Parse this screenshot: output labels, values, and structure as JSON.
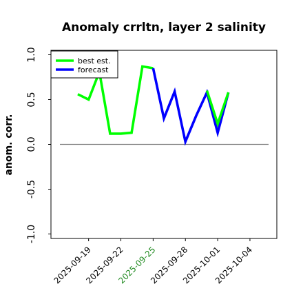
{
  "chart_data": {
    "type": "line",
    "title": "Anomaly crrltn, layer 2 salinity",
    "xlabel": "",
    "ylabel": "anom. corr.",
    "ylim": [
      -1.05,
      1.05
    ],
    "xlim": [
      "2025-09-15T12:00",
      "2025-10-06T12:00"
    ],
    "yticks": [
      -1.0,
      -0.5,
      0.0,
      0.5,
      1.0
    ],
    "ytick_labels": [
      "-1.0",
      "-0.5",
      "0.0",
      "0.5",
      "1.0"
    ],
    "xticks": [
      "2025-09-19",
      "2025-09-22",
      "2025-09-25",
      "2025-09-28",
      "2025-10-01",
      "2025-10-04"
    ],
    "xtick_labels": [
      "2025-09-19",
      "2025-09-22",
      "2025-09-25",
      "2025-09-28",
      "2025-10-01",
      "2025-10-04"
    ],
    "highlighted_tick": "2025-09-25",
    "highlight_color": "#228b22",
    "reference_line": 0.0,
    "reference_color": "#808080",
    "legend_position": "top-left",
    "series": [
      {
        "name": "best est.",
        "color": "#00ff00",
        "x": [
          "2025-09-18",
          "2025-09-19",
          "2025-09-20",
          "2025-09-21",
          "2025-09-22",
          "2025-09-23",
          "2025-09-24",
          "2025-09-25"
        ],
        "y": [
          0.56,
          0.5,
          0.81,
          0.12,
          0.12,
          0.13,
          0.87,
          0.85
        ]
      },
      {
        "name": "forecast",
        "color": "#0000ff",
        "x": [
          "2025-09-25",
          "2025-09-26",
          "2025-09-27",
          "2025-09-28",
          "2025-09-29",
          "2025-09-30",
          "2025-10-01",
          "2025-10-02"
        ],
        "y": [
          0.85,
          0.29,
          0.59,
          0.03,
          0.32,
          0.58,
          0.13,
          0.58
        ]
      },
      {
        "name": "",
        "color": "#00ff00",
        "x": [
          "2025-09-30",
          "2025-10-01",
          "2025-10-02"
        ],
        "y": [
          0.6,
          0.23,
          0.58
        ]
      }
    ]
  }
}
